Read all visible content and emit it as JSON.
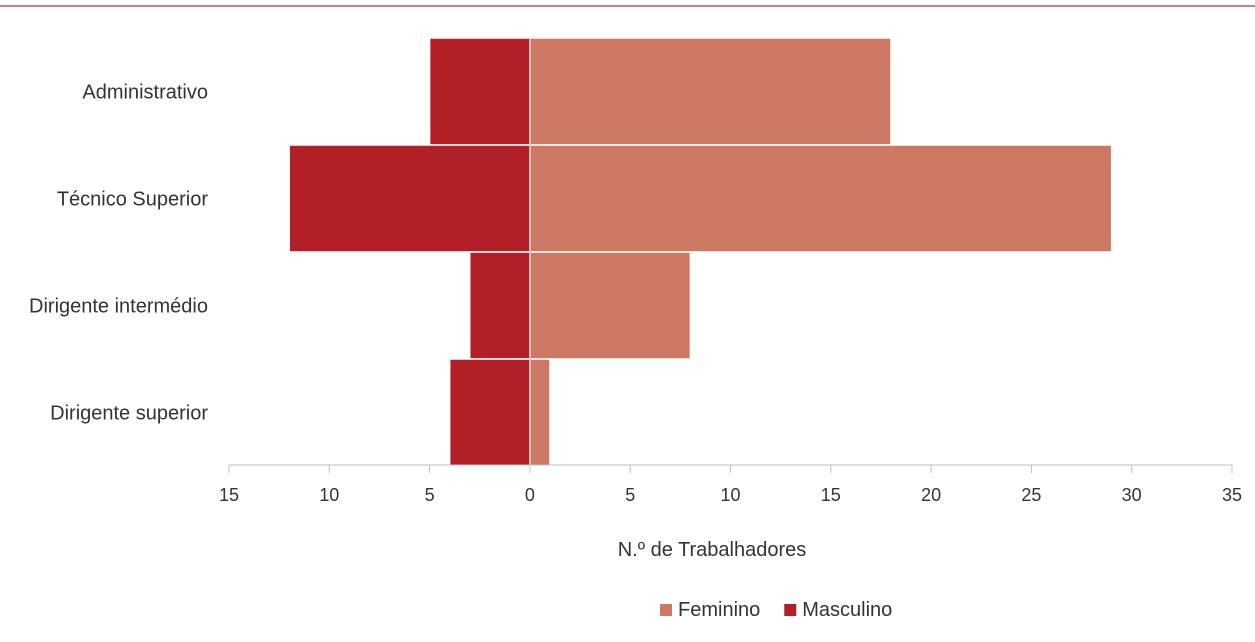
{
  "chart_data": {
    "type": "bar",
    "orientation": "horizontal",
    "layout": "population-pyramid",
    "categories": [
      "Administrativo",
      "Técnico Superior",
      "Dirigente intermédio",
      "Dirigente superior"
    ],
    "series": [
      {
        "name": "Feminino",
        "values": [
          18,
          29,
          8,
          1
        ],
        "color": "#cd7863",
        "side": "right"
      },
      {
        "name": "Masculino",
        "values": [
          5,
          12,
          3,
          4
        ],
        "color": "#b31f27",
        "side": "left"
      }
    ],
    "xlim": [
      -15,
      35
    ],
    "xticks": [
      -15,
      -10,
      -5,
      0,
      5,
      10,
      15,
      20,
      25,
      30,
      35
    ],
    "xtick_labels": [
      "15",
      "10",
      "5",
      "0",
      "5",
      "10",
      "15",
      "20",
      "25",
      "30",
      "35"
    ],
    "xlabel": "N.º de Trabalhadores",
    "ylabel": "",
    "legend_position": "bottom-center",
    "grid": false,
    "header_rule_color": "#c8554a"
  }
}
